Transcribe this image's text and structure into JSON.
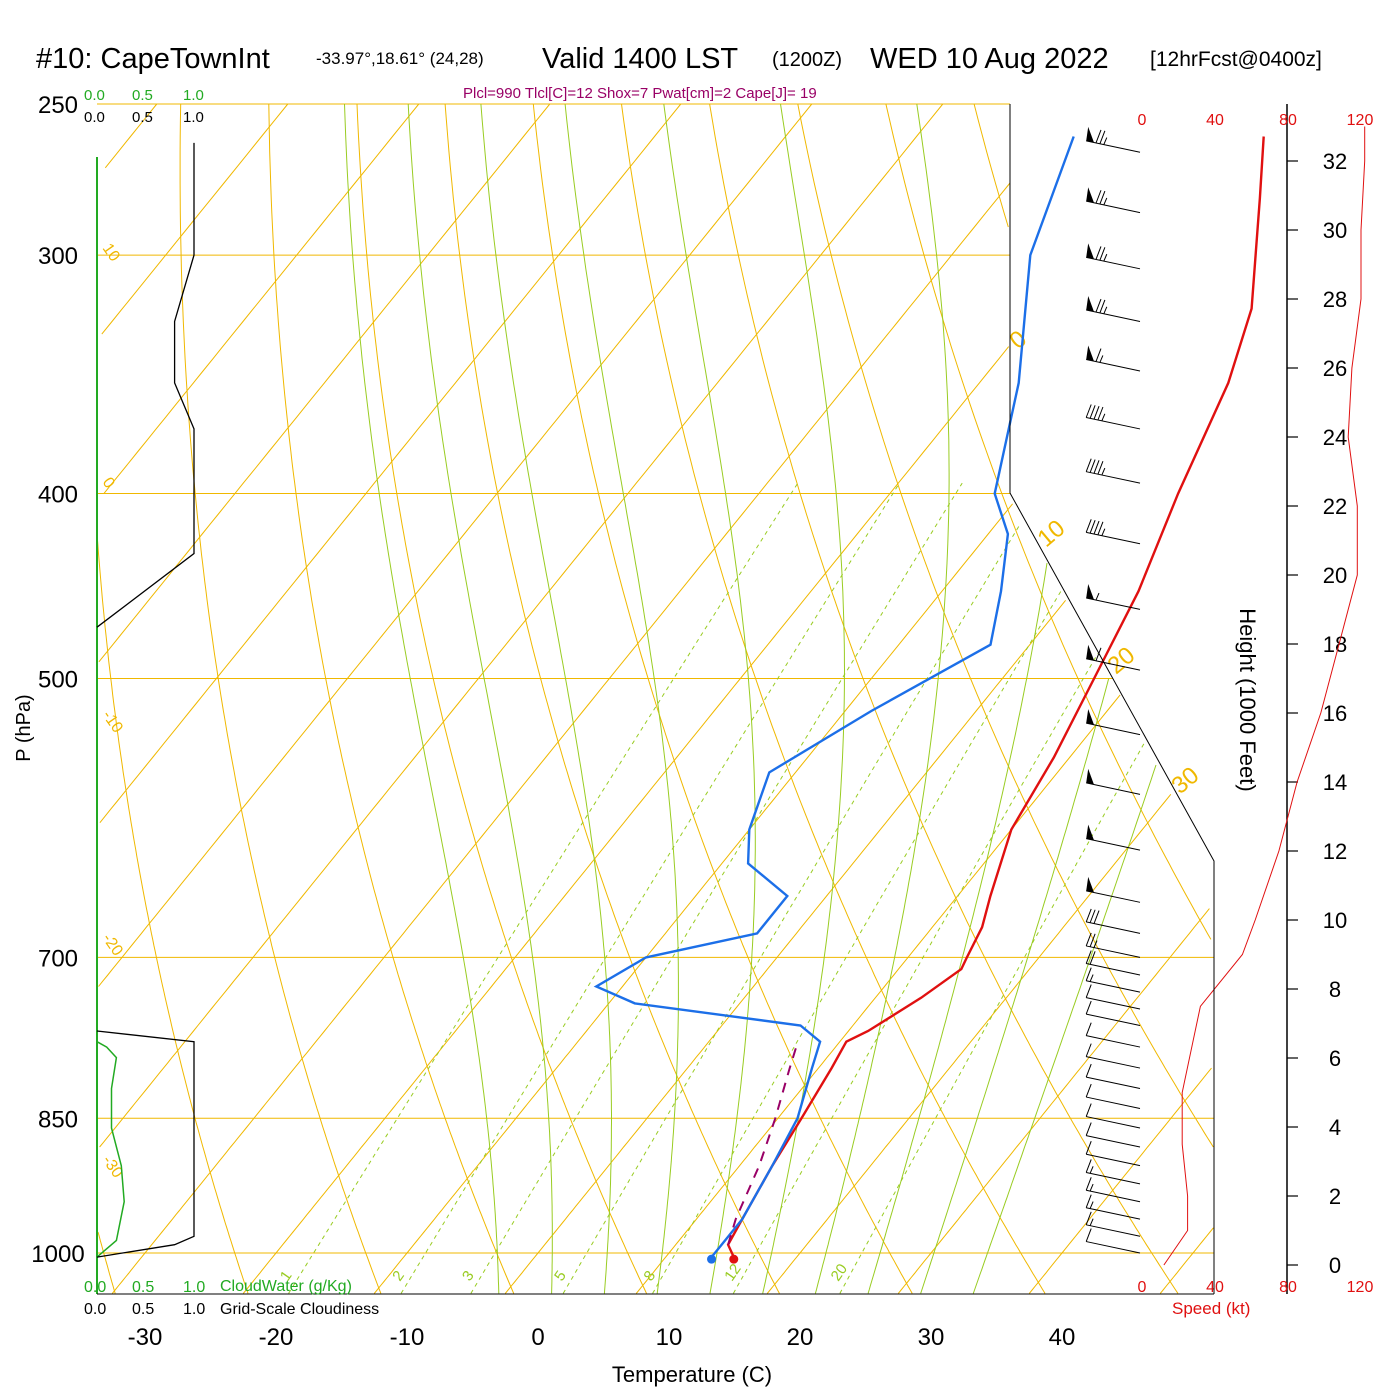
{
  "header": {
    "station": "#10: CapeTownInt",
    "coords": "-33.97°,18.61° (24,28)",
    "valid": "Valid 1400 LST",
    "zulu": "(1200Z)",
    "date": "WED 10 Aug 2022",
    "forecast": "[12hrFcst@0400z]",
    "indices": "Plcl=990 Tlcl[C]=12 Shox=7 Pwat[cm]=2 Cape[J]= 19"
  },
  "colors": {
    "temperature": "#e01010",
    "dewpoint": "#1c6fe8",
    "isotherm": "#f0b800",
    "dry_adiabat": "#f0b800",
    "moist_adiabat": "#99cc22",
    "mixing_ratio": "#99cc22",
    "cloud_water": "#22aa22",
    "cloudiness": "#000000",
    "parcel": "#990066",
    "speed": "#e01010",
    "indices_text": "#990066"
  },
  "labels": {
    "x_axis_title": "Temperature (C)",
    "y_axis_title": "P (hPa)",
    "height_axis_title": "Height (1000 Feet)",
    "speed_axis_title": "Speed (kt)",
    "cloud_water_title": "CloudWater (g/Kg)",
    "cloudiness_title": "Grid-Scale Cloudiness",
    "cloud_water_ticks": [
      "0.0",
      "0.5",
      "1.0"
    ],
    "cloudiness_ticks": [
      "0.0",
      "0.5",
      "1.0"
    ],
    "speed_ticks": [
      "0",
      "40",
      "80",
      "120"
    ],
    "pressure_ticks": [
      "250",
      "300",
      "400",
      "500",
      "700",
      "850",
      "1000"
    ],
    "temperature_ticks": [
      "-30",
      "-20",
      "-10",
      "0",
      "10",
      "20",
      "30",
      "40"
    ],
    "height_ticks": [
      "0",
      "2",
      "4",
      "6",
      "8",
      "10",
      "12",
      "14",
      "16",
      "18",
      "20",
      "22",
      "24",
      "26",
      "28",
      "30",
      "32"
    ],
    "dry_adiabat_labels": [
      "10",
      "0",
      "-10",
      "-20",
      "-30"
    ],
    "isotherm_labels_right": [
      "0",
      "10",
      "20",
      "30"
    ],
    "mixing_ratio_labels": [
      "1",
      "2",
      "3",
      "5",
      "8",
      "12",
      "20"
    ]
  },
  "chart_data": {
    "type": "skew-t",
    "xlabel": "Temperature (C)",
    "ylabel": "P (hPa)",
    "xlim": [
      -30,
      45
    ],
    "ylim": [
      1000,
      250
    ],
    "temperature_profile": [
      {
        "p": 1005,
        "t": 15.2
      },
      {
        "p": 990,
        "t": 14.0
      },
      {
        "p": 960,
        "t": 13.5
      },
      {
        "p": 900,
        "t": 12.5
      },
      {
        "p": 850,
        "t": 11.8
      },
      {
        "p": 800,
        "t": 11.0
      },
      {
        "p": 775,
        "t": 10.5
      },
      {
        "p": 765,
        "t": 11.5
      },
      {
        "p": 735,
        "t": 13.5
      },
      {
        "p": 710,
        "t": 14.8
      },
      {
        "p": 700,
        "t": 14.5
      },
      {
        "p": 675,
        "t": 13.8
      },
      {
        "p": 650,
        "t": 12.5
      },
      {
        "p": 600,
        "t": 10.0
      },
      {
        "p": 550,
        "t": 8.8
      },
      {
        "p": 500,
        "t": 7.0
      },
      {
        "p": 450,
        "t": 5.0
      },
      {
        "p": 400,
        "t": 2.0
      },
      {
        "p": 350,
        "t": -1.0
      },
      {
        "p": 320,
        "t": -3.8
      },
      {
        "p": 300,
        "t": -6.8
      },
      {
        "p": 280,
        "t": -10.0
      },
      {
        "p": 260,
        "t": -13.5
      }
    ],
    "dewpoint_profile": [
      {
        "p": 1005,
        "t": 13.5
      },
      {
        "p": 990,
        "t": 13.5
      },
      {
        "p": 960,
        "t": 13.5
      },
      {
        "p": 900,
        "t": 12.5
      },
      {
        "p": 850,
        "t": 11.5
      },
      {
        "p": 800,
        "t": 9.5
      },
      {
        "p": 775,
        "t": 8.5
      },
      {
        "p": 760,
        "t": 6.0
      },
      {
        "p": 740,
        "t": -8.0
      },
      {
        "p": 725,
        "t": -12.0
      },
      {
        "p": 700,
        "t": -10.0
      },
      {
        "p": 680,
        "t": -3.0
      },
      {
        "p": 650,
        "t": -3.0
      },
      {
        "p": 625,
        "t": -8.0
      },
      {
        "p": 600,
        "t": -10.0
      },
      {
        "p": 560,
        "t": -12.0
      },
      {
        "p": 520,
        "t": -8.0
      },
      {
        "p": 480,
        "t": -3.0
      },
      {
        "p": 450,
        "t": -5.5
      },
      {
        "p": 420,
        "t": -8.5
      },
      {
        "p": 400,
        "t": -12.0
      },
      {
        "p": 350,
        "t": -17.0
      },
      {
        "p": 300,
        "t": -24.0
      },
      {
        "p": 260,
        "t": -28.0
      }
    ],
    "parcel_profile": [
      {
        "p": 990,
        "t": 14.0
      },
      {
        "p": 960,
        "t": 13.0
      },
      {
        "p": 900,
        "t": 11.5
      },
      {
        "p": 850,
        "t": 9.8
      },
      {
        "p": 800,
        "t": 7.8
      },
      {
        "p": 780,
        "t": 7.0
      }
    ],
    "surface_temperature": 15.2,
    "surface_dewpoint": 13.5,
    "cloud_water": [
      {
        "p": 1005,
        "v": 0.0
      },
      {
        "p": 985,
        "v": 0.2
      },
      {
        "p": 940,
        "v": 0.28
      },
      {
        "p": 900,
        "v": 0.25
      },
      {
        "p": 860,
        "v": 0.15
      },
      {
        "p": 820,
        "v": 0.15
      },
      {
        "p": 790,
        "v": 0.2
      },
      {
        "p": 780,
        "v": 0.1
      },
      {
        "p": 775,
        "v": 0.0
      }
    ],
    "cloudiness": [
      {
        "p": 1005,
        "v": 0.0
      },
      {
        "p": 990,
        "v": 0.8
      },
      {
        "p": 980,
        "v": 1.0
      },
      {
        "p": 775,
        "v": 1.0
      },
      {
        "p": 765,
        "v": 0.0
      },
      {
        "p": 470,
        "v": 0.0
      },
      {
        "p": 430,
        "v": 1.0
      },
      {
        "p": 370,
        "v": 1.0
      },
      {
        "p": 350,
        "v": 0.8
      },
      {
        "p": 325,
        "v": 0.8
      },
      {
        "p": 300,
        "v": 1.0
      },
      {
        "p": 262,
        "v": 1.0
      }
    ],
    "wind_speed_profile": [
      {
        "h": 0.0,
        "spd": 12
      },
      {
        "h": 1.0,
        "spd": 25
      },
      {
        "h": 2.0,
        "spd": 25
      },
      {
        "h": 3.5,
        "spd": 22
      },
      {
        "h": 5.0,
        "spd": 22
      },
      {
        "h": 6.5,
        "spd": 28
      },
      {
        "h": 7.5,
        "spd": 32
      },
      {
        "h": 9.0,
        "spd": 55
      },
      {
        "h": 10.0,
        "spd": 62
      },
      {
        "h": 12.0,
        "spd": 75
      },
      {
        "h": 14.0,
        "spd": 85
      },
      {
        "h": 16.0,
        "spd": 98
      },
      {
        "h": 18.0,
        "spd": 108
      },
      {
        "h": 20.0,
        "spd": 118
      },
      {
        "h": 22.0,
        "spd": 118
      },
      {
        "h": 24.0,
        "spd": 113
      },
      {
        "h": 26.0,
        "spd": 115
      },
      {
        "h": 28.0,
        "spd": 120
      },
      {
        "h": 30.0,
        "spd": 120
      },
      {
        "h": 32.0,
        "spd": 122
      },
      {
        "h": 33.0,
        "spd": 122
      }
    ],
    "wind_barbs": [
      {
        "p": 265,
        "spd": 75
      },
      {
        "p": 285,
        "spd": 75
      },
      {
        "p": 305,
        "spd": 75
      },
      {
        "p": 325,
        "spd": 75
      },
      {
        "p": 345,
        "spd": 65
      },
      {
        "p": 370,
        "spd": 45
      },
      {
        "p": 395,
        "spd": 45
      },
      {
        "p": 425,
        "spd": 45
      },
      {
        "p": 460,
        "spd": 55
      },
      {
        "p": 495,
        "spd": 60
      },
      {
        "p": 535,
        "spd": 50
      },
      {
        "p": 575,
        "spd": 50
      },
      {
        "p": 615,
        "spd": 50
      },
      {
        "p": 655,
        "spd": 50
      },
      {
        "p": 680,
        "spd": 30
      },
      {
        "p": 700,
        "spd": 25
      },
      {
        "p": 715,
        "spd": 20
      },
      {
        "p": 730,
        "spd": 15
      },
      {
        "p": 745,
        "spd": 12
      },
      {
        "p": 760,
        "spd": 12
      },
      {
        "p": 780,
        "spd": 10
      },
      {
        "p": 800,
        "spd": 10
      },
      {
        "p": 820,
        "spd": 10
      },
      {
        "p": 840,
        "spd": 10
      },
      {
        "p": 860,
        "spd": 10
      },
      {
        "p": 880,
        "spd": 12
      },
      {
        "p": 900,
        "spd": 12
      },
      {
        "p": 920,
        "spd": 15
      },
      {
        "p": 940,
        "spd": 15
      },
      {
        "p": 960,
        "spd": 15
      },
      {
        "p": 980,
        "spd": 15
      },
      {
        "p": 1000,
        "spd": 10
      }
    ]
  }
}
